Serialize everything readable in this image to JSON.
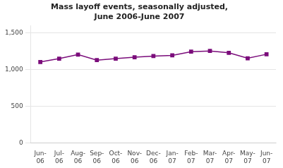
{
  "chart_data": {
    "type": "line",
    "title": "Mass layoff events, seasonally adjusted,\nJune 2006-June 2007",
    "categories": [
      "Jun-\n06",
      "Jul-\n06",
      "Aug-\n06",
      "Sep-\n06",
      "Oct-\n06",
      "Nov-\n06",
      "Dec-\n06",
      "Jan-\n07",
      "Feb-\n07",
      "Mar-\n07",
      "Apr-\n07",
      "May-\n07",
      "Jun-\n07"
    ],
    "values": [
      1105,
      1150,
      1205,
      1130,
      1150,
      1170,
      1185,
      1195,
      1245,
      1255,
      1230,
      1155,
      1210
    ],
    "color": "#7b0d7b",
    "marker": "square",
    "ylim": [
      0,
      1600
    ],
    "yticks": [
      0,
      500,
      {
        "value": 1000,
        "label": "1,000"
      },
      {
        "value": 1500,
        "label": "1,500"
      }
    ],
    "grid": true
  }
}
